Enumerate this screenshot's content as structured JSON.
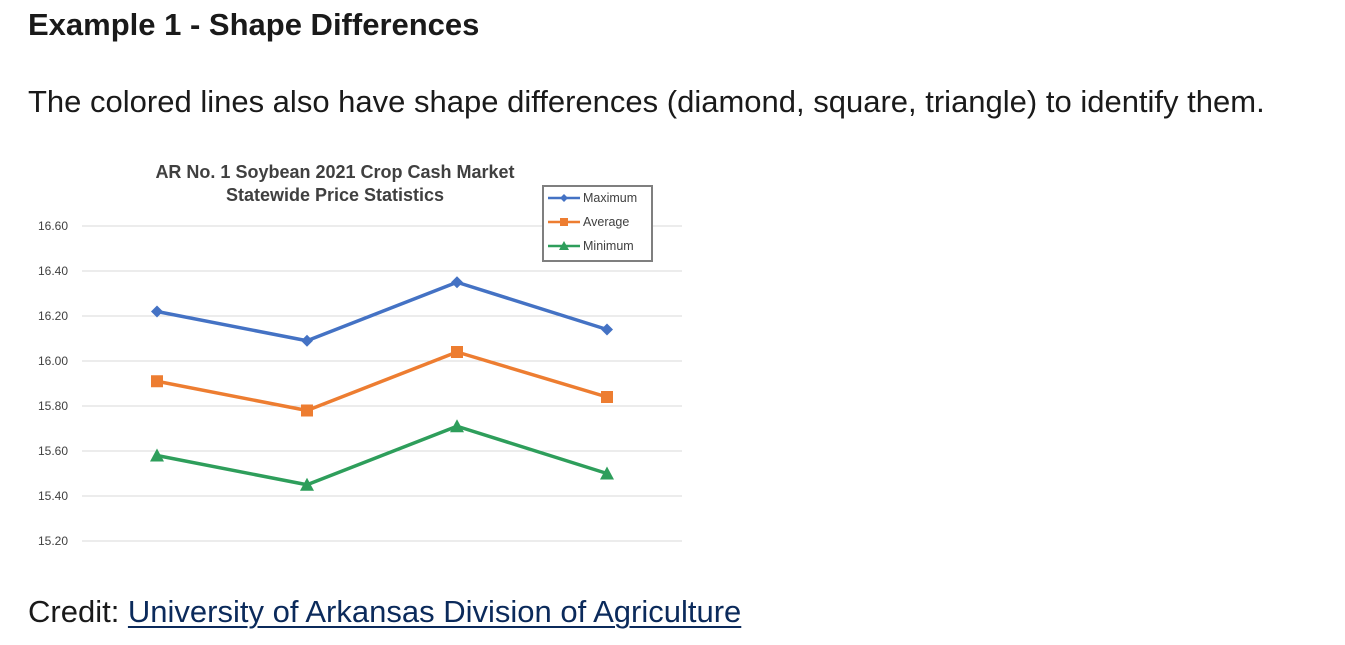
{
  "heading": "Example 1 - Shape Differences",
  "intro": "The colored lines also have shape differences (diamond, square, triangle) to identify them.",
  "credit": {
    "prefix": "Credit: ",
    "link_text": "University of Arkansas Division of Agriculture"
  },
  "chart_data": {
    "type": "line",
    "title_lines": [
      "AR No. 1 Soybean 2021 Crop Cash Market",
      "Statewide Price Statistics"
    ],
    "xlabel": "",
    "ylabel": "",
    "ylim": [
      15.2,
      16.6
    ],
    "yticks": [
      "16.60",
      "16.40",
      "16.20",
      "16.00",
      "15.80",
      "15.60",
      "15.40",
      "15.20"
    ],
    "ytick_values": [
      16.6,
      16.4,
      16.2,
      16.0,
      15.8,
      15.6,
      15.4,
      15.2
    ],
    "grid": true,
    "legend_position": "top-right",
    "series": [
      {
        "name": "Maximum",
        "marker": "diamond",
        "color": "#4472c4",
        "values": [
          16.22,
          16.09,
          16.35,
          16.14
        ]
      },
      {
        "name": "Average",
        "marker": "square",
        "color": "#ed7d31",
        "values": [
          15.91,
          15.78,
          16.04,
          15.84
        ]
      },
      {
        "name": "Minimum",
        "marker": "triangle",
        "color": "#2e9e5b",
        "values": [
          15.58,
          15.45,
          15.71,
          15.5
        ]
      }
    ]
  }
}
